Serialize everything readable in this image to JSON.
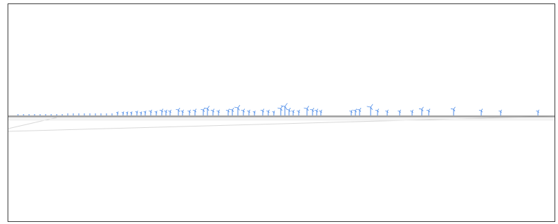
{
  "viewport": {
    "background": "#ffffff",
    "border_color": "#3b3b3b",
    "horizon_color": "#6e6e6e",
    "ground_line_color": "#d4d4d4",
    "object_color": "#4a8ae8"
  },
  "scene": {
    "icon": "wind-turbine-icon",
    "turbine_count": 68
  }
}
